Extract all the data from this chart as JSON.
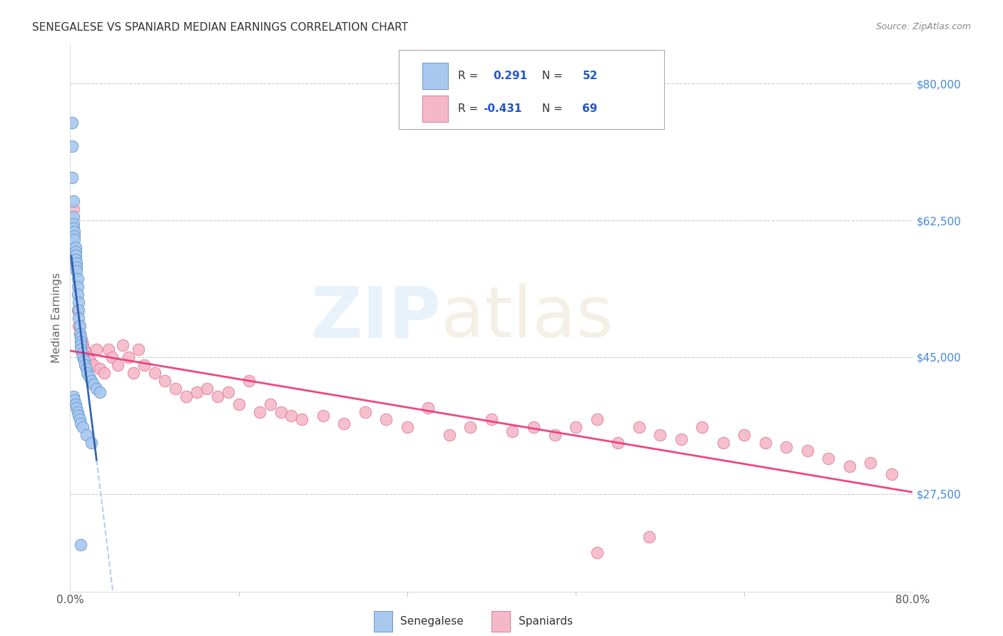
{
  "title": "SENEGALESE VS SPANIARD MEDIAN EARNINGS CORRELATION CHART",
  "source": "Source: ZipAtlas.com",
  "ylabel": "Median Earnings",
  "ytick_labels": [
    "$27,500",
    "$45,000",
    "$62,500",
    "$80,000"
  ],
  "ytick_values": [
    27500,
    45000,
    62500,
    80000
  ],
  "ymin": 15000,
  "ymax": 85000,
  "xmin": 0.0,
  "xmax": 0.8,
  "blue_color": "#a8c8f0",
  "blue_edge_color": "#6699cc",
  "pink_color": "#f5b8c8",
  "pink_edge_color": "#e07898",
  "blue_line_color": "#2255aa",
  "blue_dash_color": "#88aadd",
  "pink_line_color": "#ee3377",
  "grid_color": "#cccccc",
  "title_color": "#333333",
  "source_color": "#888888",
  "ytick_color": "#4488dd",
  "xtick_color": "#555555",
  "ylabel_color": "#666666",
  "sen_x": [
    0.002,
    0.002,
    0.002,
    0.003,
    0.003,
    0.003,
    0.003,
    0.004,
    0.004,
    0.004,
    0.005,
    0.005,
    0.005,
    0.005,
    0.006,
    0.006,
    0.006,
    0.007,
    0.007,
    0.007,
    0.008,
    0.008,
    0.008,
    0.009,
    0.009,
    0.01,
    0.01,
    0.01,
    0.01,
    0.011,
    0.012,
    0.013,
    0.014,
    0.015,
    0.016,
    0.018,
    0.02,
    0.022,
    0.025,
    0.028,
    0.003,
    0.004,
    0.005,
    0.006,
    0.007,
    0.008,
    0.009,
    0.01,
    0.012,
    0.015,
    0.02,
    0.01
  ],
  "sen_y": [
    75000,
    72000,
    68000,
    65000,
    63000,
    62000,
    61500,
    61000,
    60500,
    60000,
    59000,
    58500,
    58000,
    57500,
    57000,
    56500,
    56000,
    55000,
    54000,
    53000,
    52000,
    51000,
    50000,
    49000,
    48000,
    47500,
    47000,
    46500,
    46000,
    45500,
    45000,
    44500,
    44000,
    43500,
    43000,
    42500,
    42000,
    41500,
    41000,
    40500,
    40000,
    39500,
    39000,
    38500,
    38000,
    37500,
    37000,
    36500,
    36000,
    35000,
    34000,
    21000
  ],
  "spa_x": [
    0.003,
    0.005,
    0.007,
    0.008,
    0.009,
    0.01,
    0.011,
    0.012,
    0.013,
    0.015,
    0.017,
    0.019,
    0.022,
    0.025,
    0.028,
    0.032,
    0.036,
    0.04,
    0.045,
    0.05,
    0.055,
    0.06,
    0.065,
    0.07,
    0.08,
    0.09,
    0.1,
    0.11,
    0.12,
    0.13,
    0.14,
    0.15,
    0.16,
    0.17,
    0.18,
    0.19,
    0.2,
    0.21,
    0.22,
    0.24,
    0.26,
    0.28,
    0.3,
    0.32,
    0.34,
    0.36,
    0.38,
    0.4,
    0.42,
    0.44,
    0.46,
    0.48,
    0.5,
    0.52,
    0.54,
    0.56,
    0.58,
    0.6,
    0.62,
    0.64,
    0.66,
    0.68,
    0.7,
    0.72,
    0.74,
    0.76,
    0.78,
    0.5,
    0.55
  ],
  "spa_y": [
    64000,
    57000,
    51000,
    49000,
    48000,
    47500,
    47000,
    46500,
    46000,
    45500,
    45000,
    44500,
    44000,
    46000,
    43500,
    43000,
    46000,
    45000,
    44000,
    46500,
    45000,
    43000,
    46000,
    44000,
    43000,
    42000,
    41000,
    40000,
    40500,
    41000,
    40000,
    40500,
    39000,
    42000,
    38000,
    39000,
    38000,
    37500,
    37000,
    37500,
    36500,
    38000,
    37000,
    36000,
    38500,
    35000,
    36000,
    37000,
    35500,
    36000,
    35000,
    36000,
    37000,
    34000,
    36000,
    35000,
    34500,
    36000,
    34000,
    35000,
    34000,
    33500,
    33000,
    32000,
    31000,
    31500,
    30000,
    20000,
    22000
  ]
}
